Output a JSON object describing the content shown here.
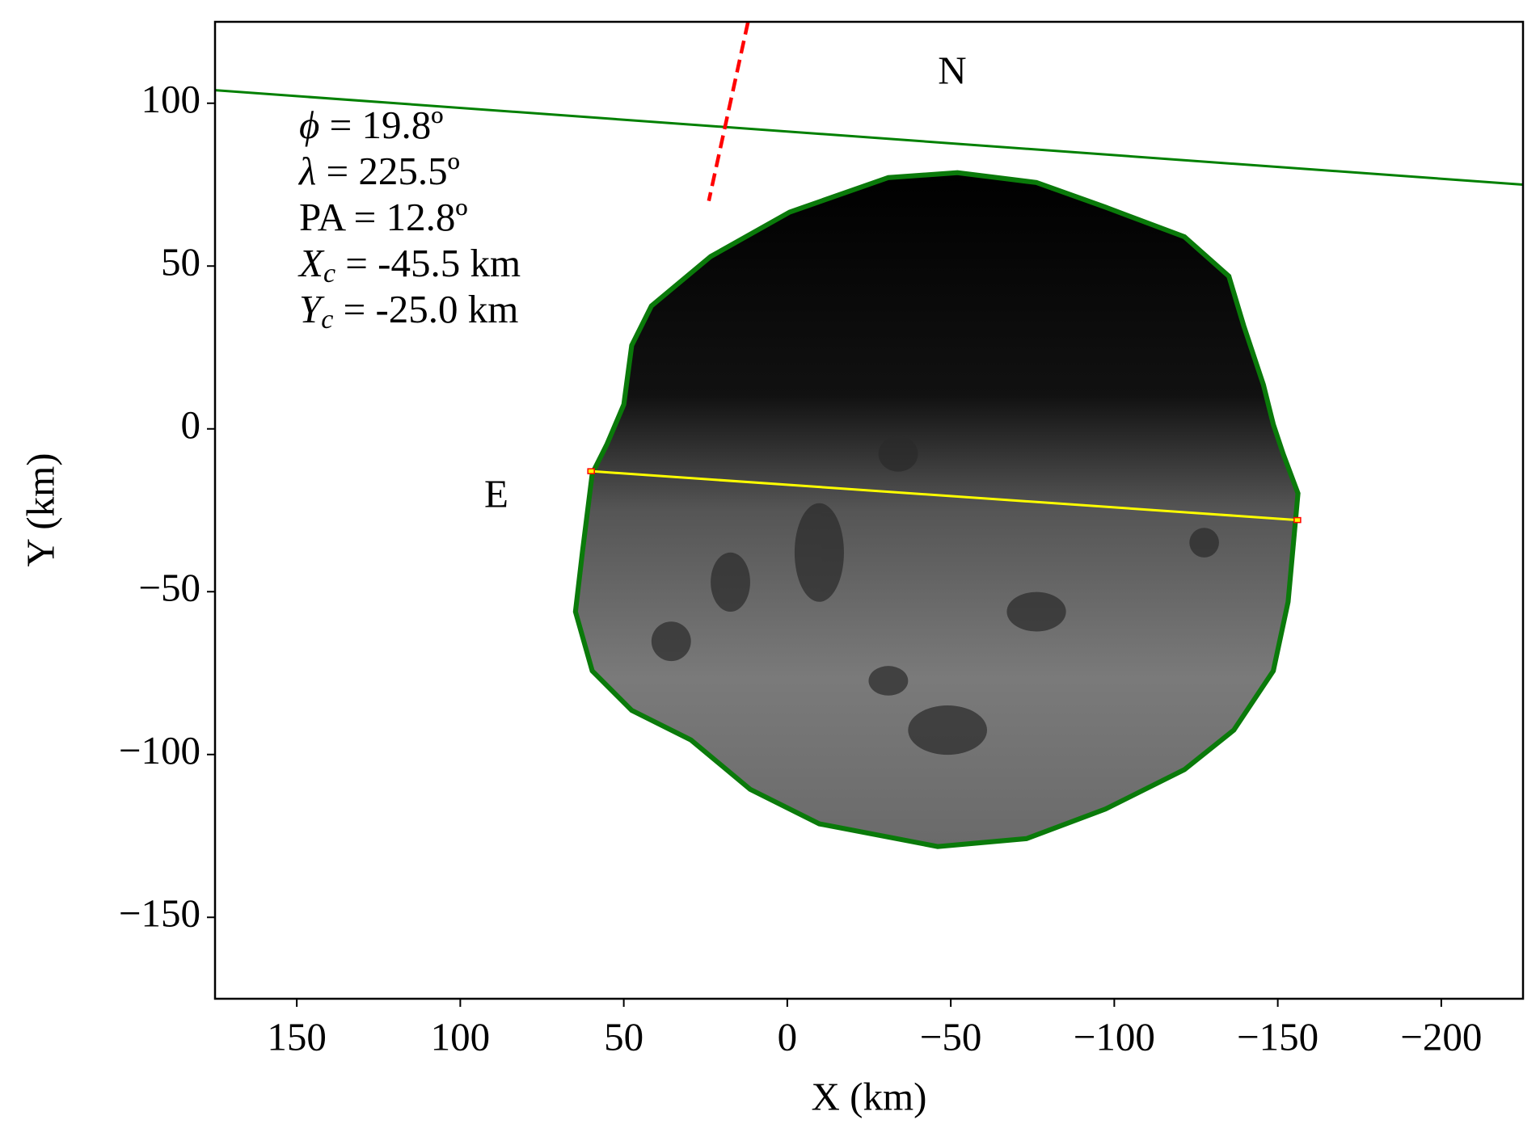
{
  "chart_data": {
    "type": "line",
    "xlabel": "X (km)",
    "ylabel": "Y (km)",
    "xlim": [
      175,
      -225
    ],
    "ylim": [
      -175,
      125
    ],
    "xticks": [
      150,
      100,
      50,
      0,
      {
        "value": -50,
        "label": "−50"
      },
      {
        "value": -100,
        "label": "−100"
      },
      {
        "value": -150,
        "label": "−150"
      },
      {
        "value": -200,
        "label": "−200"
      }
    ],
    "yticks": [
      {
        "value": -150,
        "label": "−150"
      },
      {
        "value": -100,
        "label": "−100"
      },
      {
        "value": -50,
        "label": "−50"
      },
      0,
      50,
      100
    ],
    "series": [
      {
        "color": "#008000",
        "dash": false,
        "x": [
          175,
          -225
        ],
        "values": [
          104,
          75
        ]
      },
      {
        "color": "#ff0000",
        "dash": true,
        "x": [
          12,
          24
        ],
        "values": [
          125,
          70
        ]
      },
      {
        "color": "#ffff00",
        "dash": false,
        "x": [
          60,
          -156
        ],
        "values": [
          -13,
          -28
        ]
      }
    ],
    "annotations": [
      {
        "text": "N"
      },
      {
        "text": "E"
      }
    ],
    "parameters": [
      {
        "symbol": "ϕ",
        "text": " = 19.8º"
      },
      {
        "symbol": "λ",
        "text": " = 225.5º"
      },
      {
        "symbol": "",
        "text": "PA = 12.8º"
      },
      {
        "symbol": "X",
        "sub": "c",
        "text": " = -45.5 km"
      },
      {
        "symbol": "Y",
        "sub": "c",
        "text": " = -25.0 km"
      }
    ]
  }
}
